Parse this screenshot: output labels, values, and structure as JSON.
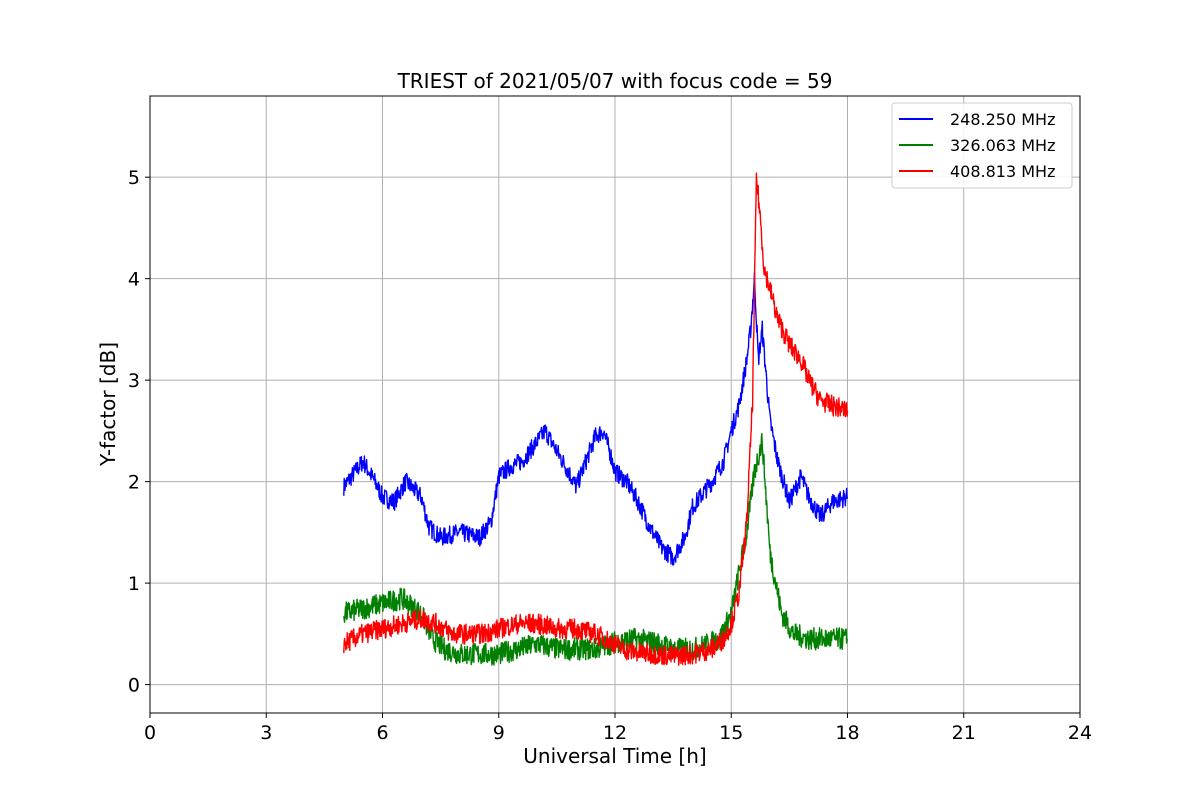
{
  "chart_data": {
    "type": "line",
    "title": "TRIEST of 2021/05/07 with focus code = 59",
    "xlabel": "Universal Time [h]",
    "ylabel": "Y-factor [dB]",
    "xlim": [
      0,
      24
    ],
    "ylim": [
      -0.28,
      5.8
    ],
    "xticks": [
      0,
      3,
      6,
      9,
      12,
      15,
      18,
      21,
      24
    ],
    "yticks": [
      0,
      1,
      2,
      3,
      4,
      5
    ],
    "grid": true,
    "legend_position": "top-right",
    "series": [
      {
        "name": "248.250 MHz",
        "color": "#0000ff",
        "noise": 0.09,
        "x": [
          5.0,
          5.2,
          5.5,
          5.8,
          6.0,
          6.3,
          6.6,
          7.0,
          7.2,
          7.5,
          8.0,
          8.5,
          8.8,
          9.0,
          9.3,
          9.6,
          10.0,
          10.2,
          10.5,
          10.8,
          11.0,
          11.2,
          11.5,
          11.7,
          11.9,
          12.0,
          12.3,
          12.6,
          12.9,
          13.2,
          13.5,
          13.8,
          14.0,
          14.5,
          14.8,
          15.0,
          15.2,
          15.4,
          15.5,
          15.6,
          15.7,
          15.8,
          16.0,
          16.2,
          16.5,
          16.8,
          17.0,
          17.3,
          17.6,
          18.0
        ],
        "y": [
          1.95,
          2.05,
          2.2,
          2.0,
          1.85,
          1.8,
          2.0,
          1.85,
          1.55,
          1.45,
          1.5,
          1.45,
          1.6,
          2.05,
          2.15,
          2.2,
          2.4,
          2.5,
          2.3,
          2.1,
          1.95,
          2.15,
          2.45,
          2.5,
          2.25,
          2.1,
          2.0,
          1.8,
          1.55,
          1.35,
          1.25,
          1.45,
          1.75,
          2.0,
          2.2,
          2.5,
          2.75,
          3.2,
          3.5,
          4.0,
          3.2,
          3.5,
          2.6,
          2.2,
          1.8,
          2.05,
          1.85,
          1.65,
          1.8,
          1.85
        ]
      },
      {
        "name": "326.063 MHz",
        "color": "#008000",
        "noise": 0.11,
        "x": [
          5.0,
          5.5,
          6.0,
          6.5,
          7.0,
          7.3,
          7.6,
          8.0,
          8.5,
          9.0,
          9.5,
          10.0,
          10.5,
          11.0,
          11.5,
          12.0,
          12.5,
          13.0,
          13.5,
          14.0,
          14.4,
          14.7,
          15.0,
          15.2,
          15.4,
          15.6,
          15.8,
          16.0,
          16.3,
          16.6,
          17.0,
          17.5,
          18.0
        ],
        "y": [
          0.7,
          0.75,
          0.8,
          0.85,
          0.7,
          0.45,
          0.35,
          0.3,
          0.3,
          0.3,
          0.35,
          0.4,
          0.35,
          0.35,
          0.35,
          0.42,
          0.45,
          0.42,
          0.35,
          0.35,
          0.4,
          0.45,
          0.7,
          1.1,
          1.5,
          2.1,
          2.4,
          1.3,
          0.7,
          0.5,
          0.45,
          0.45,
          0.45
        ]
      },
      {
        "name": "408.813 MHz",
        "color": "#ff0000",
        "noise": 0.1,
        "x": [
          5.0,
          5.5,
          6.0,
          6.5,
          7.0,
          7.4,
          7.8,
          8.2,
          8.6,
          9.0,
          9.5,
          10.0,
          10.5,
          11.0,
          11.5,
          12.0,
          12.2,
          12.5,
          13.0,
          13.5,
          14.0,
          14.5,
          14.8,
          15.0,
          15.2,
          15.4,
          15.55,
          15.65,
          15.75,
          15.85,
          16.0,
          16.2,
          16.5,
          16.8,
          17.0,
          17.3,
          17.6,
          18.0
        ],
        "y": [
          0.4,
          0.5,
          0.55,
          0.6,
          0.65,
          0.6,
          0.5,
          0.5,
          0.5,
          0.55,
          0.6,
          0.6,
          0.55,
          0.55,
          0.5,
          0.4,
          0.35,
          0.32,
          0.3,
          0.28,
          0.3,
          0.35,
          0.45,
          0.6,
          0.9,
          1.6,
          2.8,
          5.0,
          4.6,
          4.1,
          3.9,
          3.6,
          3.35,
          3.2,
          3.0,
          2.8,
          2.75,
          2.7
        ]
      }
    ]
  }
}
